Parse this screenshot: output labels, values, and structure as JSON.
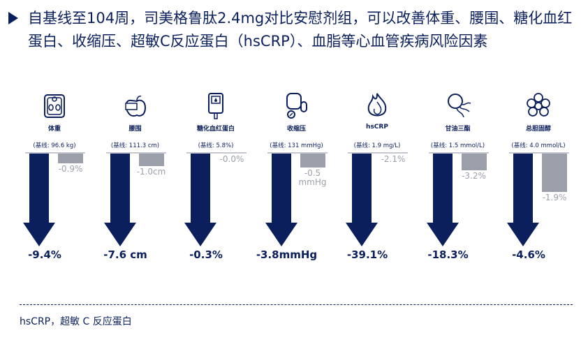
{
  "title": "自基线至104周，司美格鲁肽2.4mg对比安慰剂组，可以改善体重、腰围、糖化血红蛋白、收缩压、超敏C反应蛋白（hsCRP）、血脂等心血管疾病风险因素",
  "footnote": "hsCRP，超敏 C 反应蛋白",
  "colors": {
    "semaglutide": "#0b1f5c",
    "placebo": "#9a9fa9"
  },
  "chart_data": {
    "type": "bar",
    "categories": [
      "体重",
      "腰围",
      "糖化血红蛋白",
      "收缩压",
      "hsCRP",
      "甘油三酯",
      "总胆固醇"
    ],
    "icons": [
      "scale-icon",
      "apple-tape-icon",
      "glucose-meter-icon",
      "blood-pressure-icon",
      "flame-icon",
      "lipid-droplet-icon",
      "cholesterol-cells-icon"
    ],
    "baselines": [
      "(基线: 96.6 kg)",
      "(基线: 111.3 cm)",
      "(基线: 5.8%)",
      "(基线: 131 mmHg)",
      "(基线: 1.9 mg/L)",
      "(基线: 1.5 mmol/L)",
      "(基线: 4.0 mmol/L)"
    ],
    "series": [
      {
        "values": [
          -9.4,
          -7.6,
          -0.3,
          -3.8,
          -39.1,
          -18.3,
          -4.6
        ],
        "labels": [
          "-9.4%",
          "-7.6 cm",
          "-0.3%",
          "-3.8mmHg",
          "-39.1%",
          "-18.3%",
          "-4.6%"
        ]
      },
      {
        "values": [
          -0.9,
          -1.0,
          -0.0,
          -0.5,
          -2.1,
          -3.2,
          -1.9
        ],
        "labels": [
          "-0.9%",
          "-1.0cm",
          "-0.0%",
          "-0.5 mmHg",
          "-2.1%",
          "-3.2%",
          "-1.9%"
        ]
      }
    ]
  }
}
